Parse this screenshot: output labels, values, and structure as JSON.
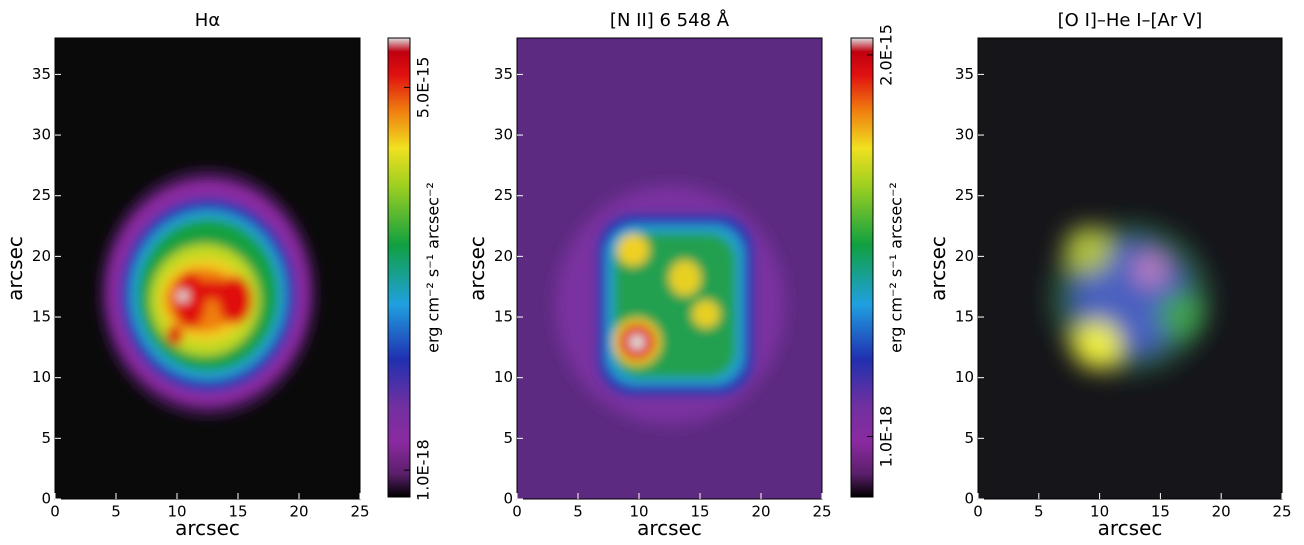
{
  "chart_data": [
    {
      "type": "image",
      "title": "Hα",
      "xlabel": "arcsec",
      "ylabel": "arcsec",
      "xlim": [
        0,
        25
      ],
      "ylim": [
        0,
        38
      ],
      "xticks": [
        0,
        5,
        10,
        15,
        20,
        25
      ],
      "yticks": [
        0,
        5,
        10,
        15,
        20,
        25,
        30,
        35
      ],
      "colorbar": {
        "label": "erg cm⁻² s⁻¹ arcsec⁻²",
        "log": true,
        "lim": [
          5.5e-19,
          1.5e-14
        ],
        "ticks": [
          {
            "value": 1e-18,
            "label": "1.0E-18"
          },
          {
            "value": 5e-15,
            "label": "5.0E-15"
          }
        ]
      }
    },
    {
      "type": "image",
      "title": "[N II] 6 548 Å",
      "xlabel": "arcsec",
      "ylabel": "arcsec",
      "xlim": [
        0,
        25
      ],
      "ylim": [
        0,
        38
      ],
      "xticks": [
        0,
        5,
        10,
        15,
        20,
        25
      ],
      "yticks": [
        0,
        5,
        10,
        15,
        20,
        25,
        30,
        35
      ],
      "colorbar": {
        "label": "erg cm⁻² s⁻¹ arcsec⁻²",
        "log": true,
        "lim": [
          3e-19,
          2.8e-15
        ],
        "ticks": [
          {
            "value": 1e-18,
            "label": "1.0E-18"
          },
          {
            "value": 2e-15,
            "label": "2.0E-15"
          }
        ]
      }
    },
    {
      "type": "image",
      "title": "[O I]–He I–[Ar V]",
      "xlabel": "arcsec",
      "ylabel": "arcsec",
      "xlim": [
        0,
        25
      ],
      "ylim": [
        0,
        38
      ],
      "xticks": [
        0,
        5,
        10,
        15,
        20,
        25
      ],
      "yticks": [
        0,
        5,
        10,
        15,
        20,
        25,
        30,
        35
      ]
    }
  ]
}
